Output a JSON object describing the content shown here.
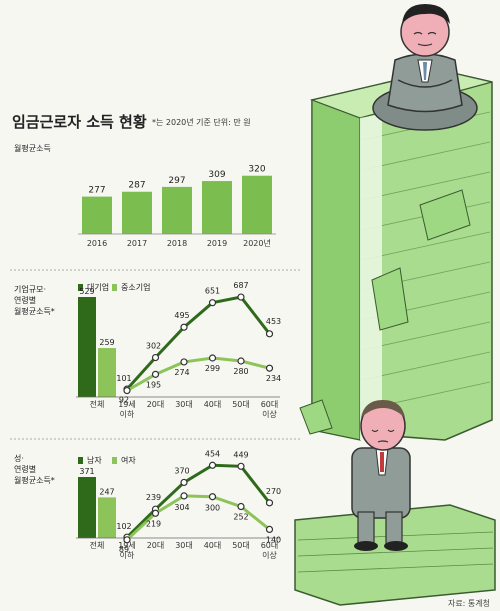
{
  "header": {
    "title": "임금근로자 소득 현황",
    "note": "*는 2020년 기준   단위: 만 원"
  },
  "source": "자료: 통계청",
  "colors": {
    "dark": "#2f6a1a",
    "light": "#8cc45a",
    "bar": "#7bbd4f",
    "money": "#a9dc8e",
    "divider": "#aaa"
  },
  "chart_data": [
    {
      "type": "bar",
      "label": "월평균소득",
      "categories": [
        "2016",
        "2017",
        "2018",
        "2019",
        "2020년"
      ],
      "values": [
        277,
        287,
        297,
        309,
        320
      ]
    },
    {
      "type": "line",
      "label": [
        "기업규모·",
        "연령별",
        "월평균소득*"
      ],
      "overall": {
        "category": "전체",
        "values": [
          529,
          259
        ]
      },
      "categories": [
        [
          "19세",
          "이하"
        ],
        [
          "20대"
        ],
        [
          "30대"
        ],
        [
          "40대"
        ],
        [
          "50대"
        ],
        [
          "60대",
          "이상"
        ]
      ],
      "series": [
        {
          "name": "대기업",
          "values": [
            101,
            302,
            495,
            651,
            687,
            453
          ]
        },
        {
          "name": "중소기업",
          "values": [
            92,
            195,
            274,
            299,
            280,
            234
          ]
        }
      ],
      "ylim": [
        0,
        700
      ]
    },
    {
      "type": "line",
      "label": [
        "성·",
        "연령별",
        "월평균소득*"
      ],
      "overall": {
        "category": "전체",
        "values": [
          371,
          247
        ]
      },
      "categories": [
        [
          "19세",
          "이하"
        ],
        [
          "20대"
        ],
        [
          "30대"
        ],
        [
          "40대"
        ],
        [
          "50대"
        ],
        [
          "60대",
          "이상"
        ]
      ],
      "series": [
        {
          "name": "남자",
          "values": [
            102,
            239,
            370,
            454,
            449,
            270
          ]
        },
        {
          "name": "여자",
          "values": [
            89,
            219,
            304,
            300,
            252,
            140
          ]
        }
      ],
      "ylim": [
        0,
        470
      ]
    }
  ]
}
